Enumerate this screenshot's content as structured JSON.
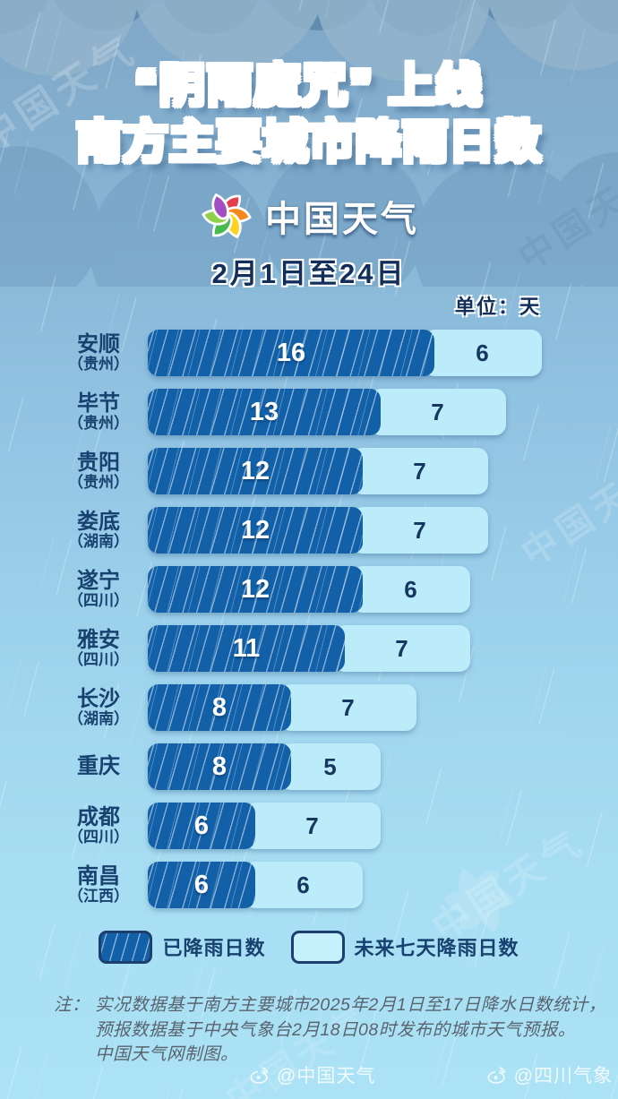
{
  "title": {
    "line1": "“阴雨魔咒” 上线",
    "line2": "南方主要城市降雨日数"
  },
  "brand": {
    "name": "中国天气"
  },
  "period": "2月1日至24日",
  "unit_label": "单位：天",
  "watermark": "中国天气",
  "chart_data": {
    "type": "bar",
    "orientation": "horizontal",
    "title": "南方主要城市降雨日数",
    "subtitle": "“阴雨魔咒” 上线",
    "period": "2月1日至24日",
    "unit": "天",
    "value_range": [
      0,
      22
    ],
    "grid": false,
    "legend_position": "bottom",
    "categories": [
      "安顺（贵州）",
      "毕节（贵州）",
      "贵阳（贵州）",
      "娄底（湖南）",
      "遂宁（四川）",
      "雅安（四川）",
      "长沙（湖南）",
      "重庆",
      "成都（四川）",
      "南昌（江西）"
    ],
    "series": [
      {
        "name": "已降雨日数",
        "color": "#1160a8",
        "values": [
          16,
          13,
          12,
          12,
          12,
          11,
          8,
          8,
          6,
          6
        ]
      },
      {
        "name": "未来七天降雨日数",
        "color": "#bcebf9",
        "values": [
          6,
          7,
          7,
          7,
          6,
          7,
          7,
          5,
          7,
          6
        ]
      }
    ],
    "cities": [
      {
        "name": "安顺",
        "province": "（贵州）",
        "observed": 16,
        "forecast": 6
      },
      {
        "name": "毕节",
        "province": "（贵州）",
        "observed": 13,
        "forecast": 7
      },
      {
        "name": "贵阳",
        "province": "（贵州）",
        "observed": 12,
        "forecast": 7
      },
      {
        "name": "娄底",
        "province": "（湖南）",
        "observed": 12,
        "forecast": 7
      },
      {
        "name": "遂宁",
        "province": "（四川）",
        "observed": 12,
        "forecast": 6
      },
      {
        "name": "雅安",
        "province": "（四川）",
        "observed": 11,
        "forecast": 7
      },
      {
        "name": "长沙",
        "province": "（湖南）",
        "observed": 8,
        "forecast": 7
      },
      {
        "name": "重庆",
        "province": "",
        "observed": 8,
        "forecast": 5
      },
      {
        "name": "成都",
        "province": "（四川）",
        "observed": 6,
        "forecast": 7
      },
      {
        "name": "南昌",
        "province": "（江西）",
        "observed": 6,
        "forecast": 6
      }
    ]
  },
  "note": {
    "prefix": "注：",
    "line1": "实况数据基于南方主要城市2025年2月1日至17日降水日数统计，",
    "line2": "预报数据基于中央气象台2月18日08时发布的城市天气预报。",
    "line3": "中国天气网制图。"
  },
  "footer": {
    "left": "@中国天气",
    "right": "@四川气象"
  },
  "colors": {
    "observed_bar": "#1160a8",
    "forecast_bar": "#bcebf9",
    "label_text": "#17416f",
    "title_text": "#2f7cc6",
    "note_text": "#59646f"
  }
}
